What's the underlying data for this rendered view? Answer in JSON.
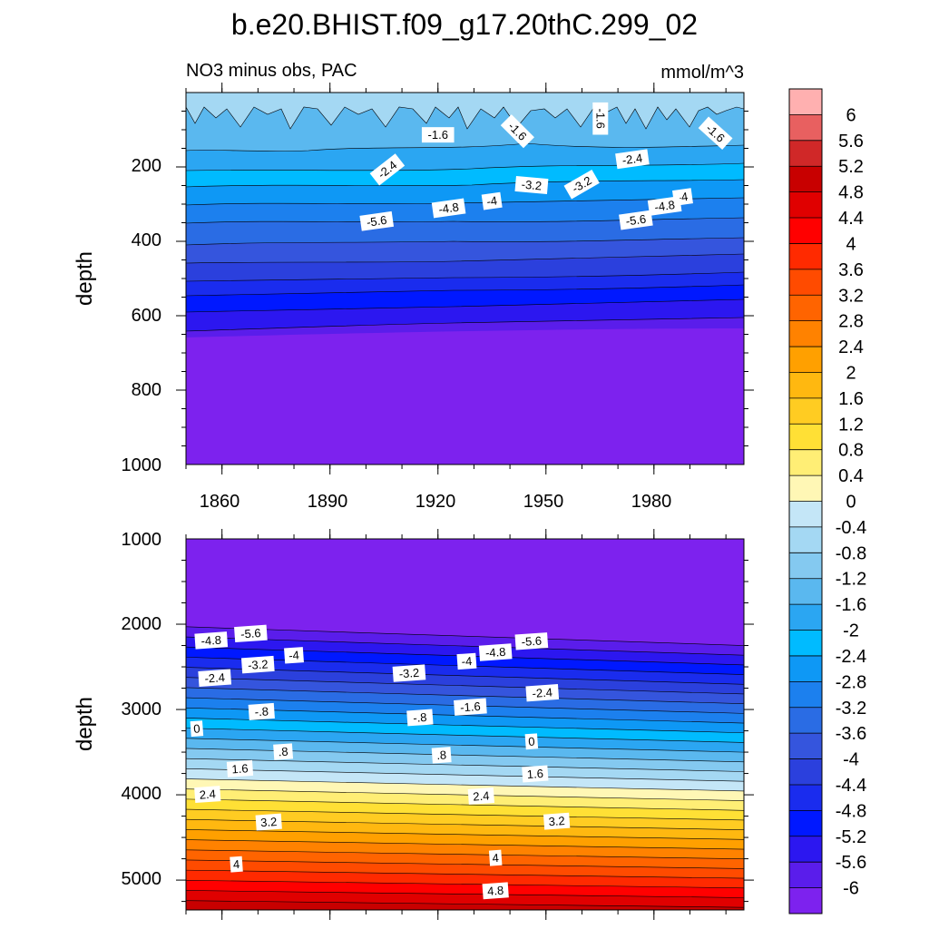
{
  "chart_data": [
    {
      "type": "contour",
      "title": "b.e20.BHIST.f09_g17.20thC.299_02",
      "left_string": "NO3 minus obs, PAC",
      "right_string": "mmol/m^3",
      "xlabel": "",
      "ylabel": "depth",
      "xlim": [
        1850,
        2005
      ],
      "ylim": [
        1000,
        0
      ],
      "xticks": [
        "1860",
        "1890",
        "1920",
        "1950",
        "1980"
      ],
      "yticks": [
        "200",
        "400",
        "600",
        "800",
        "1000"
      ],
      "contour_labels": [
        {
          "text": "-1.6",
          "x": 1920,
          "y": 115
        },
        {
          "text": "-1.6",
          "x": 1942,
          "y": 105
        },
        {
          "text": "-1.6",
          "x": 1965,
          "y": 70
        },
        {
          "text": "-1.6",
          "x": 1997,
          "y": 110
        },
        {
          "text": "-2.4",
          "x": 1906,
          "y": 208
        },
        {
          "text": "-2.4",
          "x": 1974,
          "y": 180
        },
        {
          "text": "-3.2",
          "x": 1946,
          "y": 250
        },
        {
          "text": "-3.2",
          "x": 1960,
          "y": 248
        },
        {
          "text": "-4",
          "x": 1935,
          "y": 293
        },
        {
          "text": "-4",
          "x": 1988,
          "y": 282
        },
        {
          "text": "-4.8",
          "x": 1923,
          "y": 312
        },
        {
          "text": "-4.8",
          "x": 1983,
          "y": 306
        },
        {
          "text": "-5.6",
          "x": 1903,
          "y": 347
        },
        {
          "text": "-5.6",
          "x": 1975,
          "y": 344
        }
      ],
      "field": {
        "saturated_level": -6,
        "saturated_below": 360
      }
    },
    {
      "type": "contour",
      "xlabel": "",
      "ylabel": "depth",
      "xlim": [
        1850,
        2005
      ],
      "ylim": [
        1000,
        5350
      ],
      "yticks": [
        "1000",
        "2000",
        "3000",
        "4000",
        "5000"
      ],
      "contour_labels": [
        {
          "text": "-4.8",
          "x": 1857,
          "y": 2195
        },
        {
          "text": "-5.6",
          "x": 1868,
          "y": 2115
        },
        {
          "text": "-4",
          "x": 1880,
          "y": 2370
        },
        {
          "text": "-3.2",
          "x": 1870,
          "y": 2480
        },
        {
          "text": "-2.4",
          "x": 1858,
          "y": 2635
        },
        {
          "text": "-4",
          "x": 1928,
          "y": 2440
        },
        {
          "text": "-4.8",
          "x": 1936,
          "y": 2335
        },
        {
          "text": "-5.6",
          "x": 1946,
          "y": 2205
        },
        {
          "text": "-3.2",
          "x": 1912,
          "y": 2580
        },
        {
          "text": "-2.4",
          "x": 1949,
          "y": 2810
        },
        {
          "text": "-1.6",
          "x": 1929,
          "y": 2975
        },
        {
          "text": "-.8",
          "x": 1871,
          "y": 3030
        },
        {
          "text": "-.8",
          "x": 1915,
          "y": 3100
        },
        {
          "text": "0",
          "x": 1853,
          "y": 3230
        },
        {
          "text": "0",
          "x": 1946,
          "y": 3380
        },
        {
          "text": ".8",
          "x": 1877,
          "y": 3500
        },
        {
          "text": ".8",
          "x": 1921,
          "y": 3540
        },
        {
          "text": "1.6",
          "x": 1865,
          "y": 3700
        },
        {
          "text": "1.6",
          "x": 1947,
          "y": 3760
        },
        {
          "text": "2.4",
          "x": 1856,
          "y": 4000
        },
        {
          "text": "2.4",
          "x": 1932,
          "y": 4020
        },
        {
          "text": "3.2",
          "x": 1873,
          "y": 4325
        },
        {
          "text": "3.2",
          "x": 1953,
          "y": 4315
        },
        {
          "text": "4",
          "x": 1864,
          "y": 4820
        },
        {
          "text": "4",
          "x": 1936,
          "y": 4745
        },
        {
          "text": "4.8",
          "x": 1936,
          "y": 5130
        }
      ]
    }
  ],
  "colorbar": {
    "labels": [
      "6",
      "5.6",
      "5.2",
      "4.8",
      "4.4",
      "4",
      "3.6",
      "3.2",
      "2.8",
      "2.4",
      "2",
      "1.6",
      "1.2",
      "0.8",
      "0.4",
      "0",
      "-0.4",
      "-0.8",
      "-1.2",
      "-1.6",
      "-2",
      "-2.4",
      "-2.8",
      "-3.2",
      "-3.6",
      "-4",
      "-4.4",
      "-4.8",
      "-5.2",
      "-5.6",
      "-6"
    ],
    "colors": [
      "#ffb0b0",
      "#e86060",
      "#d02828",
      "#c80000",
      "#e00000",
      "#ff0000",
      "#ff2a00",
      "#ff4b00",
      "#ff6400",
      "#ff8200",
      "#ffa000",
      "#ffb810",
      "#ffcc22",
      "#ffe035",
      "#ffee75",
      "#fff7b5",
      "#c4e6f7",
      "#a4d8f3",
      "#84c9f0",
      "#5ab8ef",
      "#2ba6f2",
      "#00bbff",
      "#0e98f5",
      "#1c80ee",
      "#2a6ce4",
      "#3555dd",
      "#2b40dd",
      "#1a2cee",
      "#0018ff",
      "#2c17f0",
      "#5a1deb",
      "#7d22ee"
    ]
  }
}
